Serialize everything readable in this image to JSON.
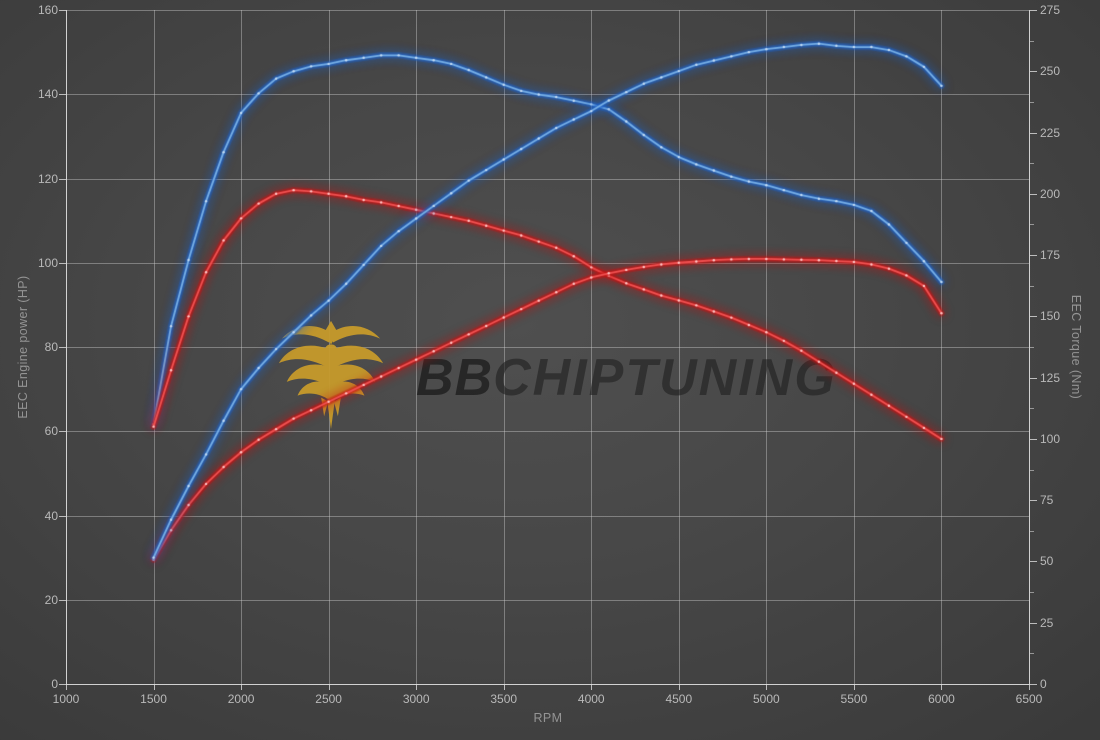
{
  "watermark": {
    "brand_bold": "BB",
    "brand_rest": "CHIPTUNING",
    "emblem_color": "#C89B2B"
  },
  "axes": {
    "x": {
      "title": "RPM",
      "min": 1000,
      "max": 6500,
      "ticks": [
        1000,
        1500,
        2000,
        2500,
        3000,
        3500,
        4000,
        4500,
        5000,
        5500,
        6000,
        6500
      ]
    },
    "y_left": {
      "title": "EEC Engine power (HP)",
      "min": 0,
      "max": 160,
      "ticks": [
        0,
        20,
        40,
        60,
        80,
        100,
        120,
        140,
        160
      ]
    },
    "y_right": {
      "title": "EEC Torque (Nm)",
      "min": 0,
      "max": 275,
      "ticks": [
        0,
        25,
        50,
        75,
        100,
        125,
        150,
        175,
        200,
        225,
        250,
        275
      ],
      "minor_step": 12.5
    }
  },
  "chart_data": {
    "type": "line",
    "xlabel": "RPM",
    "ylabel_left": "EEC Engine power (HP)",
    "ylabel_right": "EEC Torque (Nm)",
    "x_range": [
      1000,
      6500
    ],
    "y_left_range": [
      0,
      160
    ],
    "y_right_range": [
      0,
      275
    ],
    "grid": true,
    "legend": "none",
    "series": [
      {
        "name": "tuned-torque",
        "axis": "right",
        "unit": "Nm",
        "glow": "#1e62c8",
        "core": "#78b0e6",
        "dot": "#c6ddf4",
        "points": [
          [
            1500,
            106
          ],
          [
            1600,
            146
          ],
          [
            1700,
            173
          ],
          [
            1800,
            197
          ],
          [
            1900,
            217
          ],
          [
            2000,
            233
          ],
          [
            2100,
            241
          ],
          [
            2200,
            247
          ],
          [
            2300,
            250
          ],
          [
            2400,
            252
          ],
          [
            2500,
            253
          ],
          [
            2600,
            254.5
          ],
          [
            2700,
            255.5
          ],
          [
            2800,
            256.5
          ],
          [
            2900,
            256.5
          ],
          [
            3000,
            255.5
          ],
          [
            3100,
            254.5
          ],
          [
            3200,
            253
          ],
          [
            3300,
            250.5
          ],
          [
            3400,
            247.5
          ],
          [
            3500,
            244.5
          ],
          [
            3600,
            242
          ],
          [
            3700,
            240.5
          ],
          [
            3800,
            239.5
          ],
          [
            3900,
            238
          ],
          [
            4000,
            236.5
          ],
          [
            4100,
            234.5
          ],
          [
            4200,
            229.5
          ],
          [
            4300,
            224
          ],
          [
            4400,
            219
          ],
          [
            4500,
            215
          ],
          [
            4600,
            212
          ],
          [
            4700,
            209.5
          ],
          [
            4800,
            207
          ],
          [
            4900,
            205
          ],
          [
            5000,
            203.5
          ],
          [
            5100,
            201.5
          ],
          [
            5200,
            199.5
          ],
          [
            5300,
            198
          ],
          [
            5400,
            197
          ],
          [
            5500,
            195.5
          ],
          [
            5600,
            193
          ],
          [
            5700,
            187.5
          ],
          [
            5800,
            180
          ],
          [
            5900,
            172.5
          ],
          [
            6000,
            164
          ]
        ]
      },
      {
        "name": "stock-torque",
        "axis": "right",
        "unit": "Nm",
        "glow": "#c61414",
        "core": "#f05252",
        "dot": "#ffc9c9",
        "points": [
          [
            1500,
            105
          ],
          [
            1600,
            128
          ],
          [
            1700,
            150
          ],
          [
            1800,
            168
          ],
          [
            1900,
            181
          ],
          [
            2000,
            190
          ],
          [
            2100,
            196
          ],
          [
            2200,
            200
          ],
          [
            2300,
            201.5
          ],
          [
            2400,
            201
          ],
          [
            2500,
            200
          ],
          [
            2600,
            199
          ],
          [
            2700,
            197.5
          ],
          [
            2800,
            196.5
          ],
          [
            2900,
            195
          ],
          [
            3000,
            193.5
          ],
          [
            3100,
            192
          ],
          [
            3200,
            190.5
          ],
          [
            3300,
            189
          ],
          [
            3400,
            187
          ],
          [
            3500,
            185
          ],
          [
            3600,
            183
          ],
          [
            3700,
            180.5
          ],
          [
            3800,
            178
          ],
          [
            3900,
            174.5
          ],
          [
            4000,
            170
          ],
          [
            4100,
            166.5
          ],
          [
            4200,
            163.5
          ],
          [
            4300,
            161
          ],
          [
            4400,
            158.5
          ],
          [
            4500,
            156.5
          ],
          [
            4600,
            154.5
          ],
          [
            4700,
            152
          ],
          [
            4800,
            149.5
          ],
          [
            4900,
            146.5
          ],
          [
            5000,
            143.5
          ],
          [
            5100,
            140
          ],
          [
            5200,
            136
          ],
          [
            5300,
            131.5
          ],
          [
            5400,
            127
          ],
          [
            5500,
            122.5
          ],
          [
            5600,
            118
          ],
          [
            5700,
            113.5
          ],
          [
            5800,
            109
          ],
          [
            5900,
            104.5
          ],
          [
            6000,
            100
          ]
        ]
      },
      {
        "name": "stock-power",
        "axis": "left",
        "unit": "HP",
        "glow": "#c61414",
        "core": "#f05252",
        "dot": "#ffc9c9",
        "points": [
          [
            1500,
            29.5
          ],
          [
            1600,
            36.5
          ],
          [
            1700,
            42.5
          ],
          [
            1800,
            47.5
          ],
          [
            1900,
            51.5
          ],
          [
            2000,
            55
          ],
          [
            2100,
            58
          ],
          [
            2200,
            60.5
          ],
          [
            2300,
            63
          ],
          [
            2400,
            65
          ],
          [
            2500,
            67
          ],
          [
            2600,
            69
          ],
          [
            2700,
            71
          ],
          [
            2800,
            73
          ],
          [
            2900,
            75
          ],
          [
            3000,
            77
          ],
          [
            3100,
            79
          ],
          [
            3200,
            81
          ],
          [
            3300,
            83
          ],
          [
            3400,
            85
          ],
          [
            3500,
            87
          ],
          [
            3600,
            89
          ],
          [
            3700,
            91
          ],
          [
            3800,
            93
          ],
          [
            3900,
            95
          ],
          [
            4000,
            96.5
          ],
          [
            4100,
            97.5
          ],
          [
            4200,
            98.3
          ],
          [
            4300,
            99
          ],
          [
            4400,
            99.6
          ],
          [
            4500,
            100
          ],
          [
            4600,
            100.3
          ],
          [
            4700,
            100.6
          ],
          [
            4800,
            100.8
          ],
          [
            4900,
            100.9
          ],
          [
            5000,
            100.9
          ],
          [
            5100,
            100.8
          ],
          [
            5200,
            100.7
          ],
          [
            5300,
            100.6
          ],
          [
            5400,
            100.4
          ],
          [
            5500,
            100.2
          ],
          [
            5600,
            99.6
          ],
          [
            5700,
            98.6
          ],
          [
            5800,
            97
          ],
          [
            5900,
            94.5
          ],
          [
            6000,
            88
          ]
        ]
      },
      {
        "name": "tuned-power",
        "axis": "left",
        "unit": "HP",
        "glow": "#1e62c8",
        "core": "#78b0e6",
        "dot": "#c6ddf4",
        "points": [
          [
            1500,
            30
          ],
          [
            1600,
            39
          ],
          [
            1700,
            47
          ],
          [
            1800,
            54.5
          ],
          [
            1900,
            62.5
          ],
          [
            2000,
            70
          ],
          [
            2100,
            75
          ],
          [
            2200,
            79.5
          ],
          [
            2300,
            83.5
          ],
          [
            2400,
            87.5
          ],
          [
            2500,
            91
          ],
          [
            2600,
            95
          ],
          [
            2700,
            99.5
          ],
          [
            2800,
            104
          ],
          [
            2900,
            107.5
          ],
          [
            3000,
            110.5
          ],
          [
            3100,
            113.5
          ],
          [
            3200,
            116.5
          ],
          [
            3300,
            119.5
          ],
          [
            3400,
            122
          ],
          [
            3500,
            124.5
          ],
          [
            3600,
            127
          ],
          [
            3700,
            129.5
          ],
          [
            3800,
            132
          ],
          [
            3900,
            134
          ],
          [
            4000,
            136
          ],
          [
            4100,
            138.5
          ],
          [
            4200,
            140.5
          ],
          [
            4300,
            142.5
          ],
          [
            4400,
            144
          ],
          [
            4500,
            145.5
          ],
          [
            4600,
            147
          ],
          [
            4700,
            148
          ],
          [
            4800,
            149
          ],
          [
            4900,
            150
          ],
          [
            5000,
            150.7
          ],
          [
            5100,
            151.2
          ],
          [
            5200,
            151.7
          ],
          [
            5300,
            152
          ],
          [
            5400,
            151.5
          ],
          [
            5500,
            151.2
          ],
          [
            5600,
            151.2
          ],
          [
            5700,
            150.5
          ],
          [
            5800,
            149
          ],
          [
            5900,
            146.5
          ],
          [
            6000,
            142
          ]
        ]
      }
    ]
  }
}
